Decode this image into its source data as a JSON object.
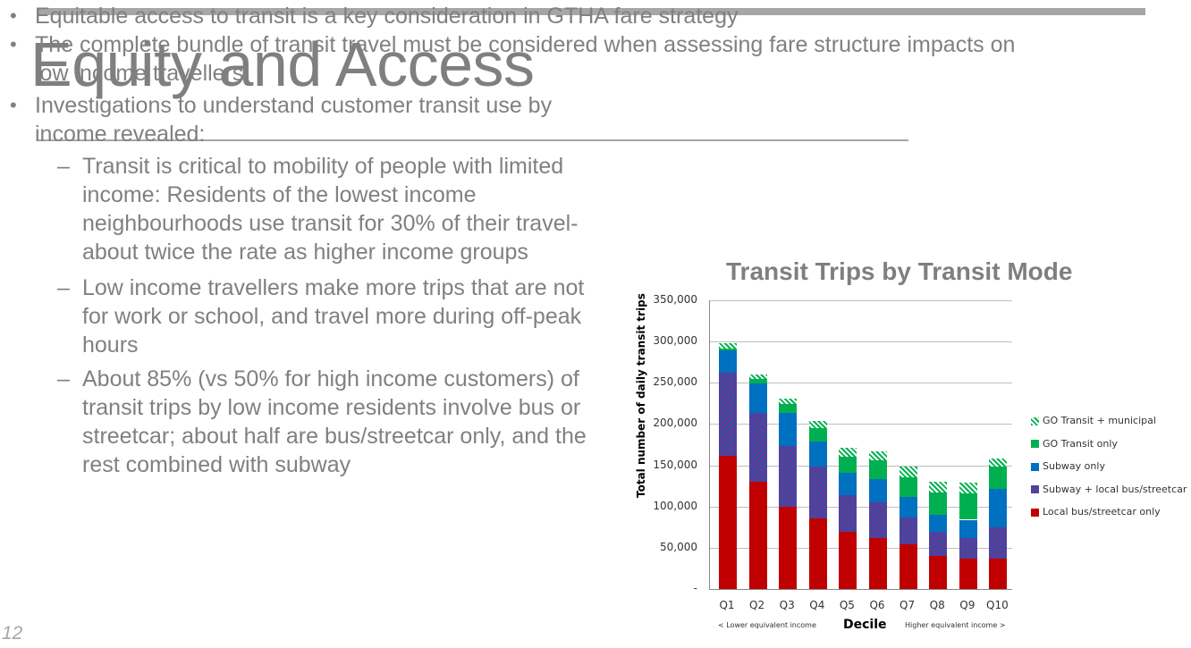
{
  "slide": {
    "title": "Equity and Access",
    "page_number": "12",
    "bullets": [
      {
        "level": 1,
        "lines": [
          "Equitable access to transit is a key consideration in GTHA fare strategy"
        ]
      },
      {
        "level": 1,
        "lines": [
          "The complete bundle of transit travel must be considered when assessing fare structure impacts on",
          "low income travellers"
        ]
      },
      {
        "level": 1,
        "lines": [
          "Investigations to understand customer transit use by",
          "income revealed:"
        ]
      },
      {
        "level": 2,
        "lines": [
          "Transit is critical to mobility of people with limited",
          "income: Residents of the lowest income",
          "neighbourhoods use transit for 30% of their travel-",
          "about twice the rate as higher income groups"
        ]
      },
      {
        "level": 2,
        "lines": [
          "Low income travellers make more trips that are not",
          "for work or school, and travel more during off-peak",
          "hours"
        ]
      },
      {
        "level": 2,
        "lines": [
          "About 85% (vs 50% for high income customers) of",
          "transit trips by low income residents involve bus or",
          "streetcar; about half are bus/streetcar only, and the",
          "rest combined with subway"
        ]
      }
    ]
  },
  "chart_data": {
    "type": "bar",
    "stacked": true,
    "title": "Transit Trips by Transit Mode",
    "xlabel": "Decile",
    "xlabel_left_note": "< Lower equivalent income",
    "xlabel_right_note": "Higher equivalent income >",
    "ylabel": "Total number of daily transit trips",
    "ylim": [
      0,
      350000
    ],
    "yticks": [
      "-",
      "50,000",
      "100,000",
      "150,000",
      "200,000",
      "250,000",
      "300,000",
      "350,000"
    ],
    "grid": true,
    "legend_position": "right",
    "categories": [
      "Q1",
      "Q2",
      "Q3",
      "Q4",
      "Q5",
      "Q6",
      "Q7",
      "Q8",
      "Q9",
      "Q10"
    ],
    "series": [
      {
        "name": "Local bus/streetcar only",
        "color": "#c00000",
        "pattern": "solid",
        "values": [
          161000,
          130000,
          100000,
          86000,
          69000,
          62000,
          54000,
          40000,
          37000,
          37000
        ]
      },
      {
        "name": "Subway + local bus/streetcar",
        "color": "#4a3c8c",
        "pattern": "hatched",
        "values": [
          101000,
          83000,
          73000,
          63000,
          45000,
          43000,
          33000,
          29000,
          25000,
          38000
        ]
      },
      {
        "name": "Subway only",
        "color": "#0070c0",
        "pattern": "solid",
        "values": [
          27000,
          36000,
          41000,
          30000,
          27000,
          28000,
          25000,
          21000,
          22000,
          46000
        ]
      },
      {
        "name": "GO Transit only",
        "color": "#00b050",
        "pattern": "solid",
        "values": [
          3000,
          6000,
          10000,
          16000,
          19000,
          23000,
          24000,
          27000,
          32000,
          27000
        ]
      },
      {
        "name": "GO Transit + municipal",
        "color": "#00b050",
        "pattern": "hatched",
        "values": [
          6000,
          5000,
          7000,
          9000,
          11000,
          11000,
          12000,
          13000,
          13000,
          10000
        ]
      }
    ],
    "legend_order": [
      "GO Transit + municipal",
      "GO Transit only",
      "Subway only",
      "Subway + local bus/streetcar",
      "Local bus/streetcar only"
    ]
  }
}
